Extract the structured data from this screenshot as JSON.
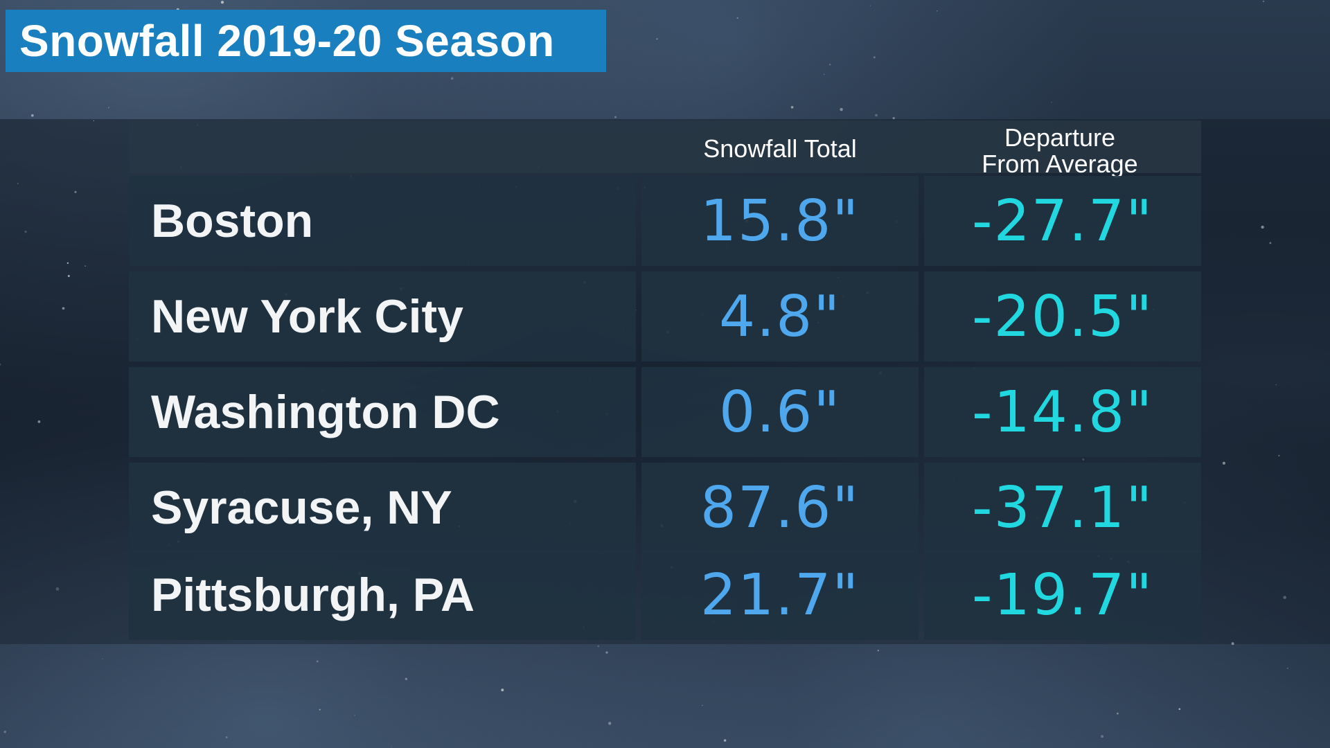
{
  "title": "Snowfall 2019-20 Season",
  "colors": {
    "title_bg": "#1a7fbf",
    "total_value": "#4fa8ee",
    "departure_value": "#22d8e0",
    "city_text": "#f2f4f6"
  },
  "table": {
    "headers": {
      "total": "Snowfall Total",
      "departure_line1": "Departure",
      "departure_line2": "From Average"
    },
    "rows": [
      {
        "city": "Boston",
        "total": "15.8\"",
        "departure": "-27.7\""
      },
      {
        "city": "New York City",
        "total": "4.8\"",
        "departure": "-20.5\""
      },
      {
        "city": "Washington DC",
        "total": "0.6\"",
        "departure": "-14.8\""
      },
      {
        "city": "Syracuse, NY",
        "total": "87.6\"",
        "departure": "-37.1\""
      },
      {
        "city": "Pittsburgh, PA",
        "total": "21.7\"",
        "departure": "-19.7\""
      }
    ]
  },
  "chart_data": {
    "type": "table",
    "title": "Snowfall 2019-20 Season",
    "columns": [
      "",
      "Snowfall Total",
      "Departure From Average"
    ],
    "categories": [
      "Boston",
      "New York City",
      "Washington DC",
      "Syracuse, NY",
      "Pittsburgh, PA"
    ],
    "series": [
      {
        "name": "Snowfall Total",
        "values": [
          15.8,
          4.8,
          0.6,
          87.6,
          21.7
        ]
      },
      {
        "name": "Departure From Average",
        "values": [
          -27.7,
          -20.5,
          -14.8,
          -37.1,
          -19.7
        ]
      }
    ]
  }
}
